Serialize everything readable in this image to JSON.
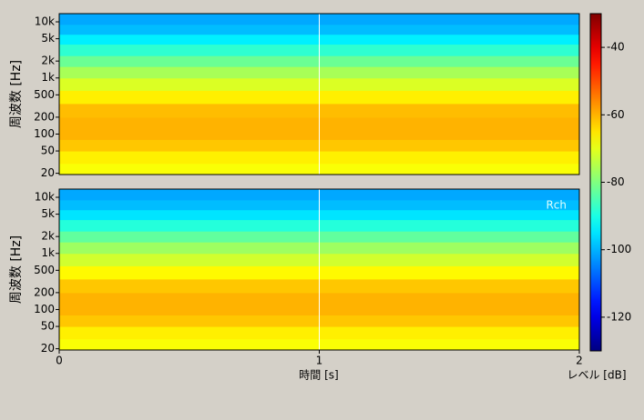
{
  "chart_data": {
    "type": "spectrogram",
    "xlabel": "時間 [s]",
    "ylabel": "周波数 [Hz]",
    "colorbar_label": "レベル [dB]",
    "xlim": [
      0,
      2
    ],
    "xticks": [
      0,
      1,
      2
    ],
    "ylim": [
      19,
      14000
    ],
    "log_y": true,
    "yticks": [
      20,
      50,
      100,
      200,
      500,
      {
        "value": 1000,
        "label": "1k"
      },
      {
        "value": 2000,
        "label": "2k"
      },
      {
        "value": 5000,
        "label": "5k"
      },
      {
        "value": 10000,
        "label": "10k"
      }
    ],
    "clim": [
      -130,
      -30
    ],
    "cticks": [
      -40,
      -60,
      -80,
      -100,
      -120
    ],
    "colormap": "jet",
    "cursor_x": 1,
    "freq_edges": [
      19,
      30,
      50,
      80,
      130,
      200,
      350,
      600,
      1000,
      1600,
      2500,
      4000,
      6000,
      9000,
      14000
    ],
    "panels": [
      {
        "levels": [
          -68,
          -66,
          -62,
          -60,
          -60,
          -61,
          -66,
          -71,
          -76,
          -82,
          -88,
          -94,
          -99,
          -101
        ]
      },
      {
        "label": "Rch",
        "levels": [
          -68,
          -66,
          -62,
          -60,
          -60,
          -62,
          -67,
          -72,
          -77,
          -83,
          -89,
          -95,
          -99,
          -101
        ]
      }
    ]
  }
}
